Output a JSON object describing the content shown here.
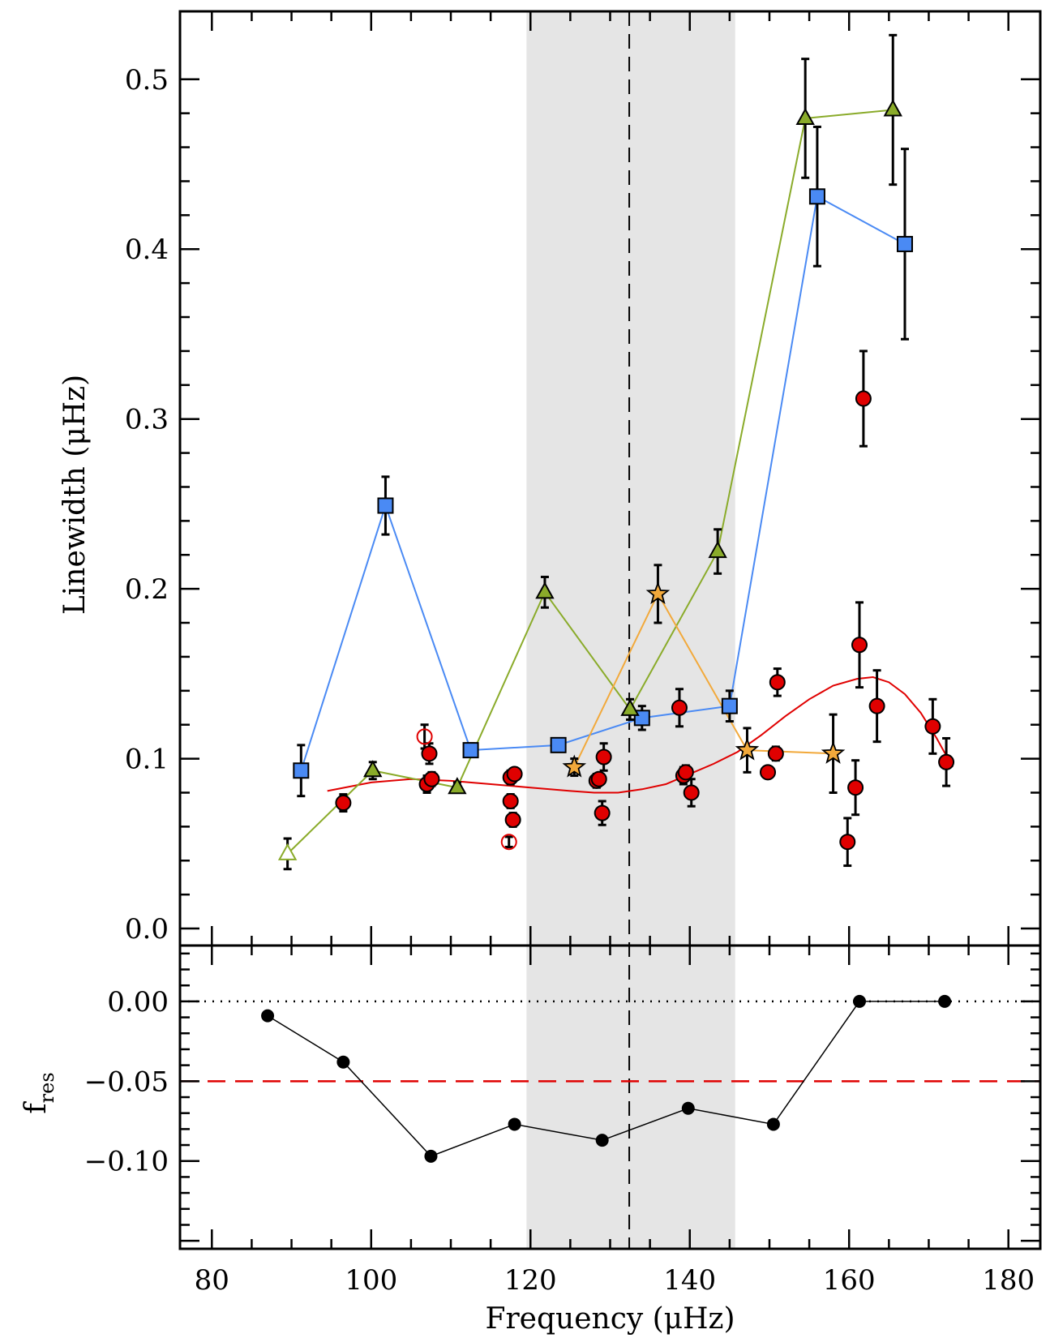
{
  "chart_data": [
    {
      "type": "scatter",
      "panel": "top",
      "xlabel": "Frequency (μHz)",
      "ylabel": "Linewidth (μHz)",
      "xlim": [
        76,
        184
      ],
      "ylim": [
        -0.01,
        0.54
      ],
      "x_ticks": [
        "80",
        "100",
        "120",
        "140",
        "160",
        "180"
      ],
      "y_ticks": [
        "0.0",
        "0.1",
        "0.2",
        "0.3",
        "0.4",
        "0.5"
      ],
      "shaded_band": [
        119.5,
        145.7
      ],
      "vertical_dashed_line": 132.4,
      "colors": {
        "red": "#e00000",
        "blue": "#4a8af4",
        "green": "#8aab2a",
        "orange": "#f2a93b",
        "band": "#e5e5e5"
      },
      "series": [
        {
          "marker": "square",
          "connected": true,
          "color": "#4a8af4",
          "points": [
            {
              "x": 91.2,
              "y": 0.093,
              "err": 0.015
            },
            {
              "x": 101.8,
              "y": 0.249,
              "err": 0.017
            },
            {
              "x": 112.5,
              "y": 0.105,
              "err": 0.004
            },
            {
              "x": 123.5,
              "y": 0.108,
              "err": 0.002
            },
            {
              "x": 134.0,
              "y": 0.124,
              "err": 0.007
            },
            {
              "x": 145.0,
              "y": 0.131,
              "err": 0.009
            },
            {
              "x": 156.0,
              "y": 0.431,
              "err": 0.041
            },
            {
              "x": 167.0,
              "y": 0.403,
              "err": 0.056
            }
          ]
        },
        {
          "marker": "triangle",
          "connected": true,
          "color": "#8aab2a",
          "points": [
            {
              "x": 89.5,
              "y": 0.044,
              "err": 0.009,
              "open": true
            },
            {
              "x": 100.2,
              "y": 0.093,
              "err": 0.005
            },
            {
              "x": 110.8,
              "y": 0.083,
              "err": 0.003
            },
            {
              "x": 121.8,
              "y": 0.198,
              "err": 0.009
            },
            {
              "x": 132.5,
              "y": 0.129,
              "err": 0.006
            },
            {
              "x": 143.5,
              "y": 0.222,
              "err": 0.013
            },
            {
              "x": 154.5,
              "y": 0.477,
              "err": 0.035
            },
            {
              "x": 165.5,
              "y": 0.482,
              "err": 0.044
            }
          ]
        },
        {
          "marker": "star",
          "connected": true,
          "color": "#f2a93b",
          "points": [
            {
              "x": 125.5,
              "y": 0.095,
              "err": 0.005
            },
            {
              "x": 136.0,
              "y": 0.197,
              "err": 0.017
            },
            {
              "x": 147.2,
              "y": 0.105,
              "err": 0.013
            },
            {
              "x": 158.0,
              "y": 0.103,
              "err": 0.023
            }
          ]
        },
        {
          "marker": "circle",
          "connected": false,
          "color": "#e00000",
          "points": [
            {
              "x": 96.5,
              "y": 0.074,
              "err": 0.005
            },
            {
              "x": 107.0,
              "y": 0.085,
              "err": 0.005
            },
            {
              "x": 107.3,
              "y": 0.103,
              "err": 0.006
            },
            {
              "x": 107.6,
              "y": 0.088,
              "err": 0.004
            },
            {
              "x": 117.5,
              "y": 0.089,
              "err": 0.004
            },
            {
              "x": 118.0,
              "y": 0.091,
              "err": 0.003
            },
            {
              "x": 117.5,
              "y": 0.075,
              "err": 0.004
            },
            {
              "x": 117.8,
              "y": 0.064,
              "err": 0.004
            },
            {
              "x": 128.3,
              "y": 0.087,
              "err": 0.004
            },
            {
              "x": 128.6,
              "y": 0.088,
              "err": 0.003
            },
            {
              "x": 129.2,
              "y": 0.101,
              "err": 0.008
            },
            {
              "x": 129.0,
              "y": 0.068,
              "err": 0.007
            },
            {
              "x": 138.7,
              "y": 0.13,
              "err": 0.011
            },
            {
              "x": 139.2,
              "y": 0.09,
              "err": 0.005
            },
            {
              "x": 139.5,
              "y": 0.092,
              "err": 0.004
            },
            {
              "x": 140.2,
              "y": 0.08,
              "err": 0.008
            },
            {
              "x": 149.8,
              "y": 0.092,
              "err": 0.003
            },
            {
              "x": 150.8,
              "y": 0.103,
              "err": 0.004
            },
            {
              "x": 151.0,
              "y": 0.145,
              "err": 0.008
            },
            {
              "x": 159.8,
              "y": 0.051,
              "err": 0.014
            },
            {
              "x": 160.8,
              "y": 0.083,
              "err": 0.016
            },
            {
              "x": 161.3,
              "y": 0.167,
              "err": 0.025
            },
            {
              "x": 161.8,
              "y": 0.312,
              "err": 0.028
            },
            {
              "x": 163.5,
              "y": 0.131,
              "err": 0.021
            },
            {
              "x": 170.5,
              "y": 0.119,
              "err": 0.016
            },
            {
              "x": 172.2,
              "y": 0.098,
              "err": 0.014
            }
          ]
        },
        {
          "marker": "open-circle",
          "connected": false,
          "color": "#e00000",
          "points": [
            {
              "x": 106.7,
              "y": 0.113,
              "err": 0.007
            },
            {
              "x": 117.3,
              "y": 0.051,
              "err": 0.003
            }
          ]
        }
      ],
      "fit_curve": {
        "color": "#e00000",
        "points": [
          [
            94.5,
            0.081
          ],
          [
            100,
            0.086
          ],
          [
            105,
            0.088
          ],
          [
            110,
            0.087
          ],
          [
            115,
            0.085
          ],
          [
            120,
            0.083
          ],
          [
            125,
            0.081
          ],
          [
            128,
            0.08
          ],
          [
            131,
            0.08
          ],
          [
            134,
            0.082
          ],
          [
            137,
            0.085
          ],
          [
            140,
            0.091
          ],
          [
            143,
            0.097
          ],
          [
            146,
            0.104
          ],
          [
            149,
            0.114
          ],
          [
            152,
            0.125
          ],
          [
            155,
            0.135
          ],
          [
            158,
            0.143
          ],
          [
            161,
            0.147
          ],
          [
            163,
            0.148
          ],
          [
            165,
            0.145
          ],
          [
            167,
            0.138
          ],
          [
            169,
            0.127
          ],
          [
            171,
            0.112
          ],
          [
            173,
            0.095
          ]
        ]
      }
    },
    {
      "type": "line",
      "panel": "bottom",
      "xlabel": "Frequency (μHz)",
      "ylabel": "f_res",
      "xlim": [
        76,
        184
      ],
      "ylim": [
        -0.155,
        0.035
      ],
      "y_ticks": [
        "0.00",
        "−0.05",
        "−0.10"
      ],
      "reference_lines": [
        {
          "y": 0.0,
          "style": "dotted",
          "color": "#000000"
        },
        {
          "y": -0.05,
          "style": "dashed",
          "color": "#e00000"
        }
      ],
      "series": [
        {
          "marker": "circle",
          "color": "#000000",
          "x": [
            87,
            96.5,
            107.5,
            118,
            129,
            139.8,
            150.5,
            161.3,
            172
          ],
          "y": [
            -0.009,
            -0.038,
            -0.097,
            -0.077,
            -0.087,
            -0.067,
            -0.077,
            0.0,
            0.0
          ]
        }
      ]
    }
  ]
}
